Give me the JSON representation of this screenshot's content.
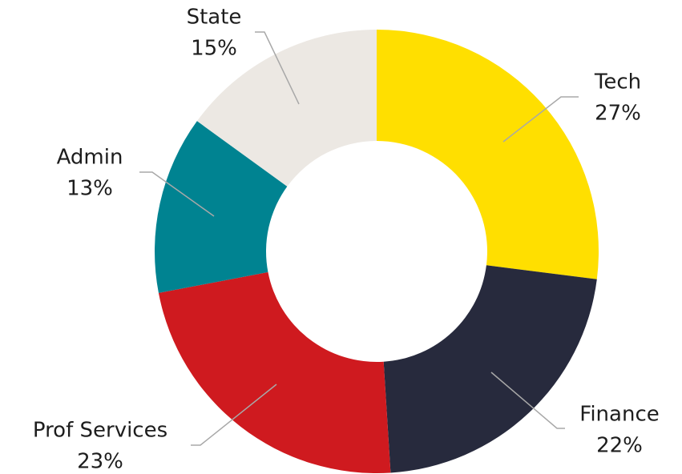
{
  "chart_data": {
    "type": "donut",
    "categories": [
      "Tech",
      "Finance",
      "Prof Services",
      "Admin",
      "State"
    ],
    "values": [
      27,
      22,
      23,
      13,
      15
    ],
    "value_labels": [
      "27%",
      "22%",
      "23%",
      "13%",
      "15%"
    ],
    "colors": [
      "#ffdf00",
      "#272a3d",
      "#cf1a1f",
      "#008391",
      "#ece8e3"
    ]
  }
}
